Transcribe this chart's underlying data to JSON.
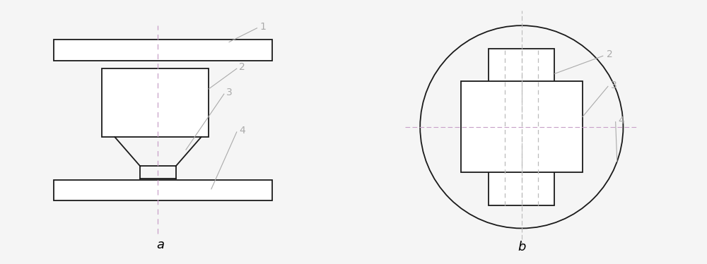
{
  "bg_color": "#f5f5f5",
  "line_color": "#1a1a1a",
  "dash_color": "#c8a0c8",
  "dash_color2": "#bbbbbb",
  "label_color": "#aaaaaa",
  "label_a": "a",
  "label_b": "b",
  "font_size_label": 13,
  "font_size_num": 10
}
